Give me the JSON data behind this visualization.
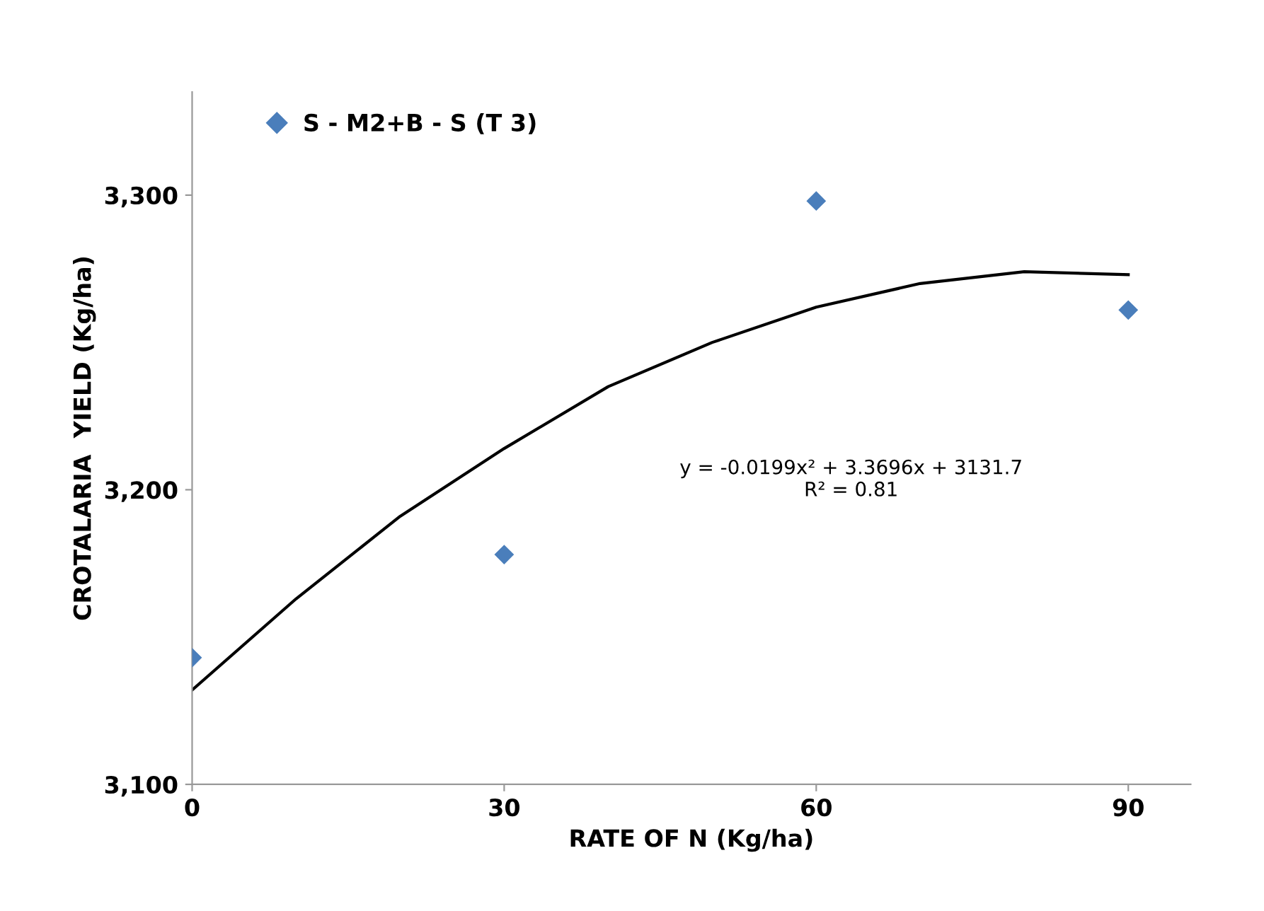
{
  "chart_data": {
    "type": "scatter",
    "xlabel": "RATE OF N (Kg/ha)",
    "ylabel": "CROTALARIA  YIELD (Kg/ha)",
    "x": [
      0,
      30,
      60,
      90
    ],
    "series": [
      {
        "name": "S - M2+B - S (T 3)",
        "color": "#4a7ebb",
        "marker": "diamond",
        "values": [
          3143,
          3178,
          3298,
          3261
        ]
      },
      {
        "type": "line",
        "color": "#000000",
        "marker": "none",
        "line_style": "solid",
        "x": [
          0,
          10,
          20,
          30,
          40,
          50,
          60,
          70,
          80,
          90
        ],
        "values": [
          3132,
          3163,
          3191,
          3214,
          3235,
          3250,
          3262,
          3270,
          3274,
          3273
        ]
      }
    ],
    "xlim": [
      0,
      96
    ],
    "xticks": [
      0,
      30,
      60,
      90
    ],
    "ylim": [
      3100,
      3335
    ],
    "yticks": [
      {
        "value": 3100,
        "label": "3,100"
      },
      {
        "value": 3200,
        "label": "3,200"
      },
      {
        "value": 3300,
        "label": "3,300"
      }
    ],
    "grid": false,
    "legend": "top left",
    "annotations": [
      "y = -0.0199x² + 3.3696x + 3131.7\nR² = 0.81"
    ]
  }
}
